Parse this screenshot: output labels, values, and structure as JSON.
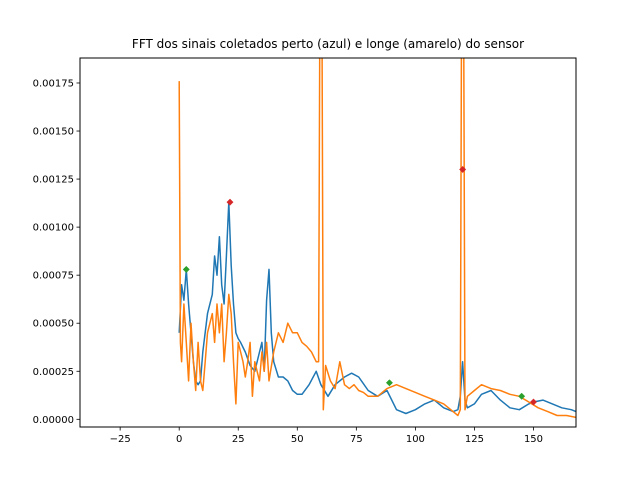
{
  "chart_data": {
    "type": "line",
    "title": "FFT dos sinais coletados perto (azul) e longe (amarelo) do sensor",
    "xlabel": "",
    "ylabel": "",
    "xlim": [
      -42,
      168
    ],
    "ylim": [
      -4e-05,
      0.00188
    ],
    "xticks": [
      -25,
      0,
      25,
      50,
      75,
      100,
      125,
      150
    ],
    "xtick_labels": [
      "−25",
      "0",
      "25",
      "50",
      "75",
      "100",
      "125",
      "150"
    ],
    "yticks": [
      0.0,
      0.00025,
      0.0005,
      0.00075,
      0.001,
      0.00125,
      0.0015,
      0.00175
    ],
    "ytick_labels": [
      "0.00000",
      "0.00025",
      "0.00050",
      "0.00075",
      "0.00100",
      "0.00125",
      "0.00150",
      "0.00175"
    ],
    "grid": false,
    "legend": "none",
    "series": [
      {
        "color": "#1f77b4",
        "x": [
          0,
          1,
          2,
          3,
          4,
          5,
          6,
          7,
          8,
          9,
          10,
          12,
          14,
          15,
          16,
          17,
          18,
          19,
          20,
          21,
          22,
          23,
          24,
          25,
          26,
          28,
          30,
          32,
          34,
          35,
          36,
          37,
          38,
          39,
          40,
          42,
          44,
          46,
          48,
          50,
          52,
          55,
          58,
          60,
          63,
          66,
          70,
          73,
          76,
          80,
          84,
          88,
          92,
          96,
          100,
          104,
          108,
          112,
          116,
          118,
          119,
          120,
          121,
          122,
          125,
          128,
          132,
          136,
          140,
          144,
          148,
          150,
          154,
          158,
          162,
          166,
          168
        ],
        "y": [
          0.00045,
          0.0007,
          0.00062,
          0.00078,
          0.0006,
          0.00045,
          0.0003,
          0.0002,
          0.00018,
          0.0002,
          0.00035,
          0.00055,
          0.00065,
          0.00085,
          0.00075,
          0.00095,
          0.0007,
          0.0006,
          0.00085,
          0.00113,
          0.0008,
          0.0006,
          0.00045,
          0.00042,
          0.0004,
          0.00035,
          0.00028,
          0.00025,
          0.00035,
          0.0004,
          0.00025,
          0.00062,
          0.00078,
          0.00045,
          0.0003,
          0.00022,
          0.00022,
          0.0002,
          0.00015,
          0.00013,
          0.00013,
          0.00018,
          0.00025,
          0.00018,
          0.00012,
          0.00018,
          0.00022,
          0.00024,
          0.00022,
          0.00015,
          0.00012,
          0.00015,
          5e-05,
          3e-05,
          5e-05,
          8e-05,
          0.0001,
          6e-05,
          4e-05,
          5e-05,
          0.00012,
          0.0003,
          0.0001,
          6e-05,
          8e-05,
          0.00013,
          0.00015,
          0.0001,
          6e-05,
          5e-05,
          8e-05,
          9e-05,
          0.0001,
          8e-05,
          6e-05,
          5e-05,
          4e-05
        ]
      },
      {
        "color": "#ff7f0e",
        "x": [
          0,
          0.5,
          1,
          2,
          3,
          4,
          5,
          6,
          7,
          8,
          9,
          10,
          11,
          12,
          13,
          14,
          15,
          16,
          17,
          18,
          19,
          20,
          21,
          22,
          23,
          24,
          25,
          26,
          27,
          28,
          29,
          30,
          31,
          32,
          33,
          34,
          35,
          36,
          37,
          38,
          40,
          42,
          44,
          46,
          48,
          50,
          52,
          54,
          56,
          58,
          59,
          59.5,
          60,
          60.5,
          61,
          62,
          64,
          66,
          68,
          70,
          72,
          74,
          76,
          78,
          80,
          84,
          88,
          92,
          96,
          100,
          104,
          108,
          112,
          115,
          118,
          119,
          119.5,
          120,
          120.5,
          121,
          122,
          125,
          128,
          132,
          136,
          140,
          144,
          148,
          152,
          156,
          160,
          164,
          168
        ],
        "y": [
          0.00176,
          0.0004,
          0.0003,
          0.0006,
          0.0004,
          0.0002,
          0.0005,
          0.0003,
          0.00015,
          0.0004,
          0.0002,
          0.00015,
          0.0003,
          0.00045,
          0.0005,
          0.00055,
          0.0004,
          0.0006,
          0.00045,
          0.0006,
          0.0003,
          0.00045,
          0.00065,
          0.00055,
          0.0003,
          8e-05,
          0.0004,
          0.00035,
          0.0003,
          0.00022,
          0.0003,
          0.0004,
          0.00012,
          0.0003,
          0.00025,
          0.0002,
          0.00035,
          0.00025,
          0.0004,
          0.0002,
          0.00035,
          0.00045,
          0.0004,
          0.0005,
          0.00045,
          0.00045,
          0.0004,
          0.00038,
          0.00035,
          0.0003,
          0.0003,
          0.0019,
          0.0019,
          0.0019,
          5e-05,
          0.00028,
          0.0002,
          0.00016,
          0.0003,
          0.00018,
          0.00016,
          0.00018,
          0.00015,
          0.00014,
          0.00012,
          0.00012,
          0.00016,
          0.00018,
          0.00016,
          0.00014,
          0.00012,
          0.0001,
          8e-05,
          5e-05,
          2e-05,
          5e-05,
          0.0019,
          0.0019,
          0.0019,
          5e-05,
          0.00012,
          0.00015,
          0.00018,
          0.00016,
          0.00015,
          0.00013,
          0.00012,
          9e-05,
          6e-05,
          4e-05,
          2e-05,
          2e-05,
          1e-05
        ]
      }
    ],
    "markers": [
      {
        "x": 21.5,
        "y": 0.00113,
        "color": "#d62728"
      },
      {
        "x": 120,
        "y": 0.0013,
        "color": "#d62728"
      },
      {
        "x": 150,
        "y": 9e-05,
        "color": "#d62728"
      },
      {
        "x": 3,
        "y": 0.00078,
        "color": "#2ca02c"
      },
      {
        "x": 89,
        "y": 0.00019,
        "color": "#2ca02c"
      },
      {
        "x": 145,
        "y": 0.00012,
        "color": "#2ca02c"
      }
    ]
  }
}
